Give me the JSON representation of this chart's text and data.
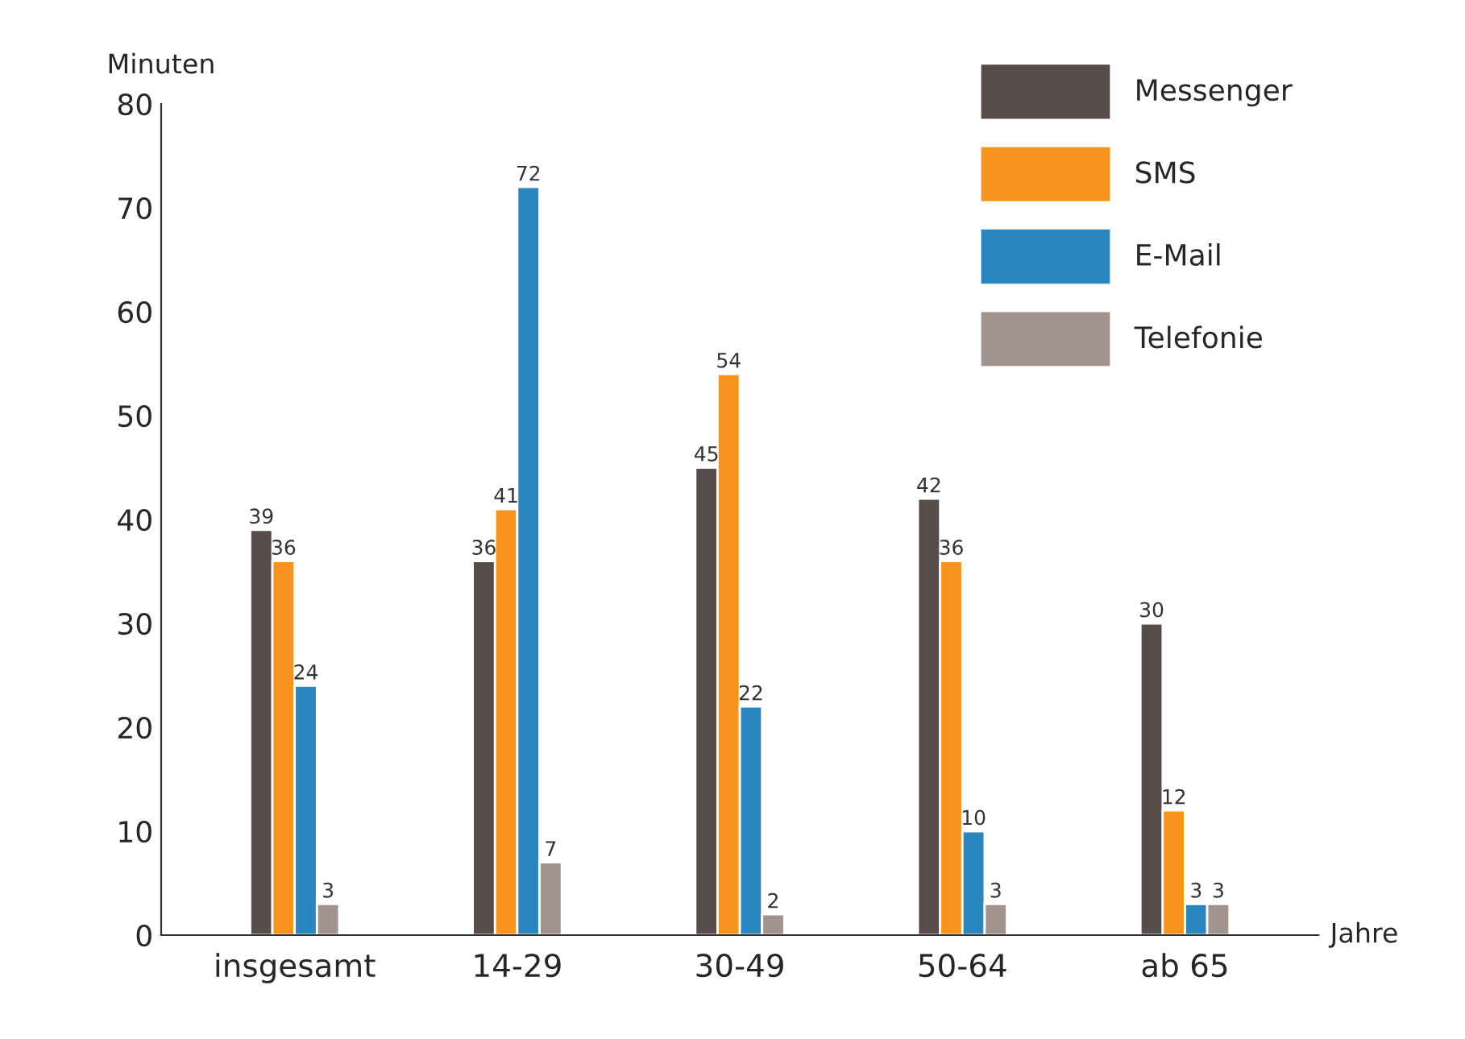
{
  "chart_data": {
    "type": "bar",
    "ylabel": "Minuten",
    "xlabel": "Jahre",
    "categories": [
      "insgesamt",
      "14-29",
      "30-49",
      "50-64",
      "ab 65"
    ],
    "series": [
      {
        "name": "Messenger",
        "color": "#574c4a",
        "values": [
          39,
          36,
          45,
          42,
          30
        ]
      },
      {
        "name": "SMS",
        "color": "#f7941d",
        "values": [
          36,
          41,
          54,
          36,
          12
        ]
      },
      {
        "name": "E-Mail",
        "color": "#2a86bf",
        "values": [
          24,
          72,
          22,
          10,
          3
        ]
      },
      {
        "name": "Telefonie",
        "color": "#a1938e",
        "values": [
          3,
          7,
          2,
          3,
          3
        ]
      }
    ],
    "ylim": [
      0,
      80
    ],
    "yticks": [
      0,
      10,
      20,
      30,
      40,
      50,
      60,
      70,
      80
    ],
    "grid": false,
    "legend": "top right",
    "data_labels": true
  }
}
